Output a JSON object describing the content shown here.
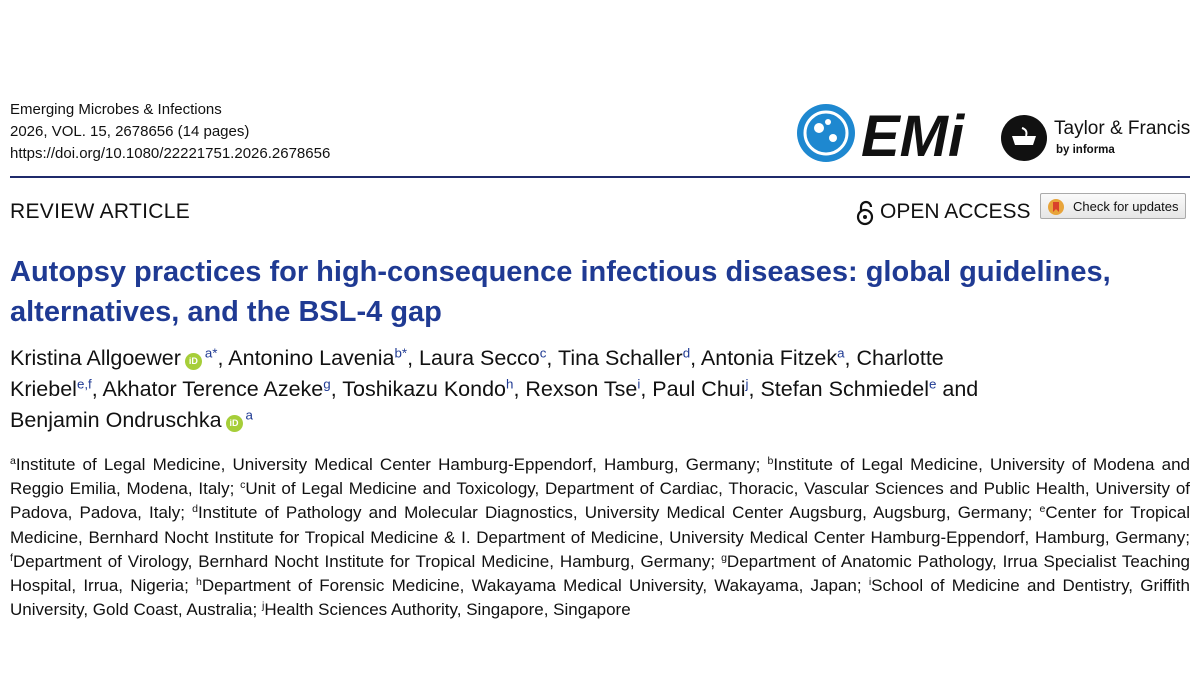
{
  "journal": {
    "name": "Emerging Microbes & Infections",
    "issue": "2026, VOL. 15, 2678656 (14 pages)",
    "doi": "https://doi.org/10.1080/22221751.2026.2678656"
  },
  "logos": {
    "journal_logo": "EMi",
    "publisher": "Taylor & Francis",
    "publisher_sub": "by informa"
  },
  "article_type": "REVIEW ARTICLE",
  "open_access": "OPEN ACCESS",
  "updates_button": "Check for updates",
  "title": "Autopsy practices for high-consequence infectious diseases: global guidelines, alternatives, and the BSL-4 gap",
  "authors": [
    {
      "name": "Kristina Allgoewer",
      "orcid": true,
      "sup": "a*",
      "sep": ","
    },
    {
      "name": "Antonino Lavenia",
      "sup": "b*",
      "sep": ","
    },
    {
      "name": "Laura Secco",
      "sup": "c",
      "sep": ","
    },
    {
      "name": "Tina Schaller",
      "sup": "d",
      "sep": ","
    },
    {
      "name": "Antonia Fitzek",
      "sup": "a",
      "sep": ","
    },
    {
      "name": "Charlotte Kriebel",
      "sup": "e,f",
      "sep": ","
    },
    {
      "name": "Akhator Terence Azeke",
      "sup": "g",
      "sep": ","
    },
    {
      "name": "Toshikazu Kondo",
      "sup": "h",
      "sep": ","
    },
    {
      "name": "Rexson Tse",
      "sup": "i",
      "sep": ","
    },
    {
      "name": "Paul Chui",
      "sup": "j",
      "sep": ","
    },
    {
      "name": "Stefan Schmiedel",
      "sup": "e",
      "sep": "and"
    },
    {
      "name": "Benjamin Ondruschka",
      "orcid": true,
      "sup": "a"
    }
  ],
  "affiliations": [
    {
      "sup": "a",
      "text": "Institute of Legal Medicine, University Medical Center Hamburg-Eppendorf, Hamburg, Germany;"
    },
    {
      "sup": "b",
      "text": "Institute of Legal Medicine, University of Modena and Reggio Emilia, Modena, Italy;"
    },
    {
      "sup": "c",
      "text": "Unit of Legal Medicine and Toxicology, Department of Cardiac, Thoracic, Vascular Sciences and Public Health, University of Padova, Padova, Italy;"
    },
    {
      "sup": "d",
      "text": "Institute of Pathology and Molecular Diagnostics, University Medical Center Augsburg, Augsburg, Germany;"
    },
    {
      "sup": "e",
      "text": "Center for Tropical Medicine, Bernhard Nocht Institute for Tropical Medicine & I. Department of Medicine, University Medical Center Hamburg-Eppendorf, Hamburg, Germany;"
    },
    {
      "sup": "f",
      "text": "Department of Virology, Bernhard Nocht Institute for Tropical Medicine, Hamburg, Germany;"
    },
    {
      "sup": "g",
      "text": "Department of Anatomic Pathology, Irrua Specialist Teaching Hospital, Irrua, Nigeria;"
    },
    {
      "sup": "h",
      "text": "Department of Forensic Medicine, Wakayama Medical University, Wakayama, Japan;"
    },
    {
      "sup": "i",
      "text": "School of Medicine and Dentistry, Griffith University, Gold Coast, Australia;"
    },
    {
      "sup": "j",
      "text": "Health Sciences Authority, Singapore, Singapore"
    }
  ]
}
